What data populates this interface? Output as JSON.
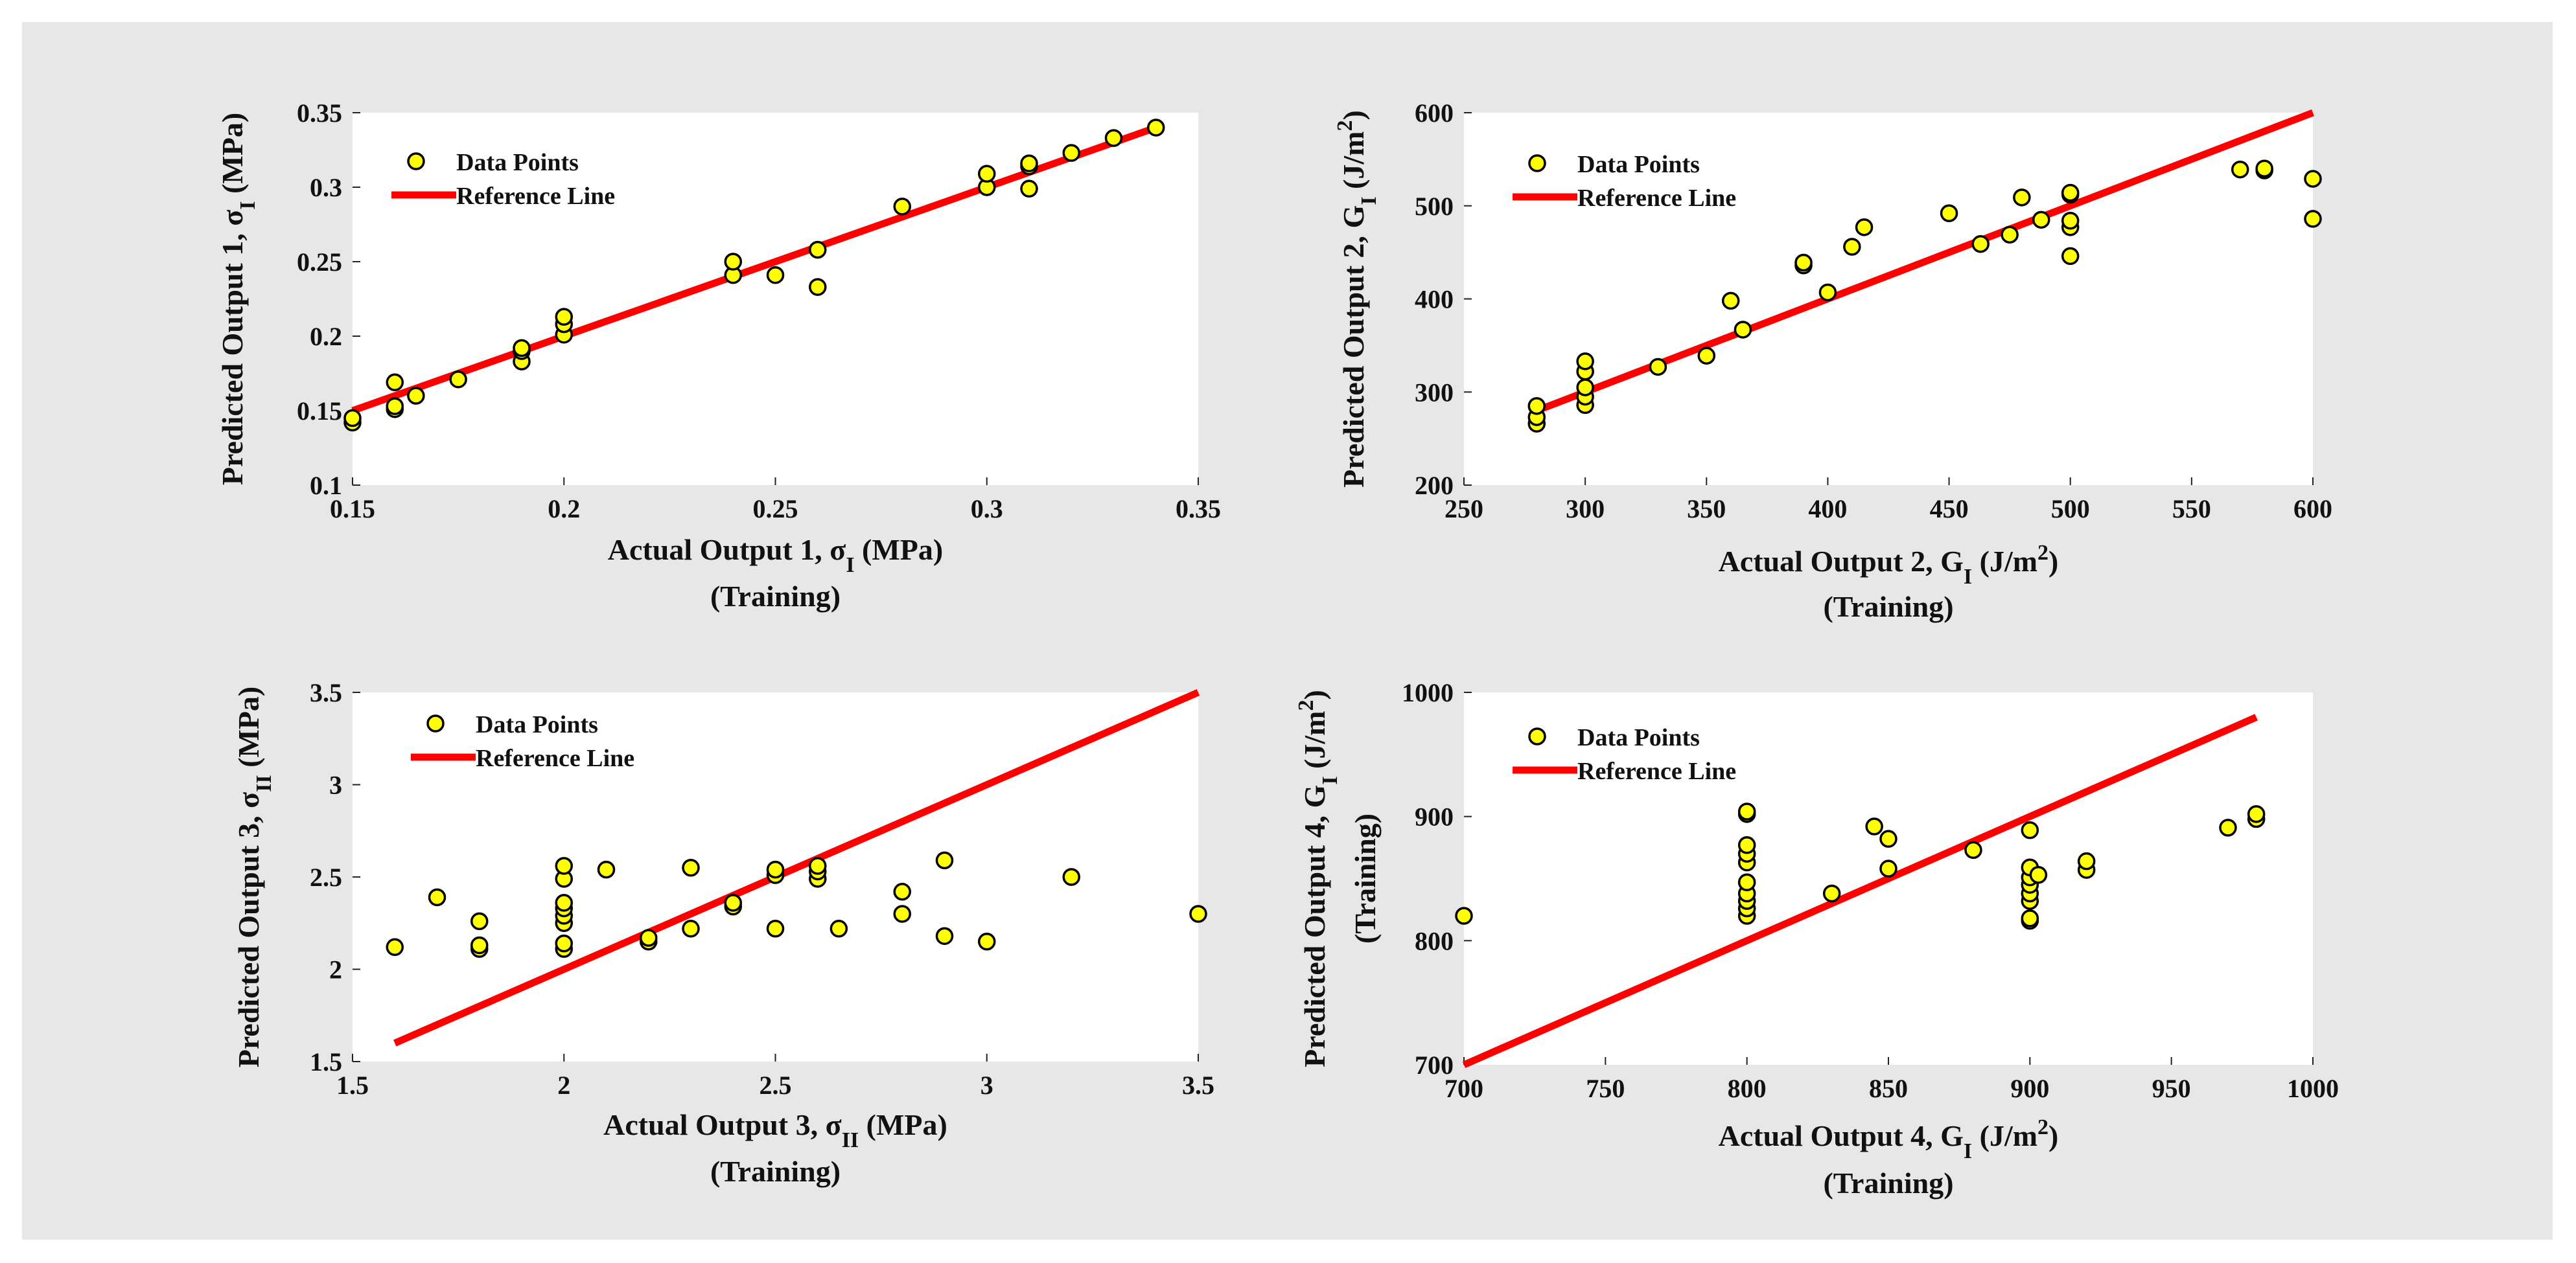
{
  "colors": {
    "background": "#e7e7e7",
    "plot_background": "#ffffff",
    "marker_fill": "#ffff00",
    "marker_edge": "#000000",
    "reference_line": "#ff0000"
  },
  "chart_data": [
    {
      "type": "scatter",
      "id": "output-1",
      "title": "",
      "xlabel": {
        "text": "Actual Output 1, σ",
        "sub": "I",
        "post": " (MPa)"
      },
      "ylabel": {
        "text": "Predicted Output 1, σ",
        "sub": "I",
        "post": " (MPa)"
      },
      "caption": "(Training)",
      "xlim": [
        0.15,
        0.35
      ],
      "ylim": [
        0.1,
        0.35
      ],
      "xticks": [
        0.15,
        0.2,
        0.25,
        0.3,
        0.35
      ],
      "xtick_labels": [
        "0.15",
        "0.2",
        "0.25",
        "0.3",
        "0.35"
      ],
      "yticks": [
        0.1,
        0.15,
        0.2,
        0.25,
        0.3,
        0.35
      ],
      "ytick_labels": [
        "0.1",
        "0.15",
        "0.2",
        "0.25",
        "0.3",
        "0.35"
      ],
      "legend": {
        "position": "top-left",
        "entries": [
          "Data Points",
          "Reference Line"
        ]
      },
      "reference_line": [
        [
          0.15,
          0.15
        ],
        [
          0.34,
          0.34
        ]
      ],
      "series": [
        {
          "name": "Data Points",
          "points": [
            [
              0.15,
              0.142
            ],
            [
              0.15,
              0.145
            ],
            [
              0.16,
              0.151
            ],
            [
              0.16,
              0.153
            ],
            [
              0.16,
              0.169
            ],
            [
              0.165,
              0.16
            ],
            [
              0.175,
              0.171
            ],
            [
              0.19,
              0.183
            ],
            [
              0.19,
              0.19
            ],
            [
              0.19,
              0.192
            ],
            [
              0.2,
              0.201
            ],
            [
              0.2,
              0.208
            ],
            [
              0.2,
              0.213
            ],
            [
              0.24,
              0.241
            ],
            [
              0.24,
              0.25
            ],
            [
              0.25,
              0.241
            ],
            [
              0.26,
              0.233
            ],
            [
              0.26,
              0.258
            ],
            [
              0.28,
              0.287
            ],
            [
              0.3,
              0.3
            ],
            [
              0.3,
              0.309
            ],
            [
              0.31,
              0.299
            ],
            [
              0.31,
              0.314
            ],
            [
              0.31,
              0.316
            ],
            [
              0.32,
              0.323
            ],
            [
              0.33,
              0.333
            ],
            [
              0.34,
              0.34
            ]
          ]
        }
      ]
    },
    {
      "type": "scatter",
      "id": "output-2",
      "title": "",
      "xlabel": {
        "text": "Actual Output 2, G",
        "sub": "I",
        "post": " (J/m",
        "sup": "2",
        "post2": ")"
      },
      "ylabel": {
        "text": "Predicted Output 2, G",
        "sub": "I",
        "post": " (J/m",
        "sup": "2",
        "post2": ")"
      },
      "caption": "(Training)",
      "xlim": [
        250,
        600
      ],
      "ylim": [
        200,
        600
      ],
      "xticks": [
        250,
        300,
        350,
        400,
        450,
        500,
        550,
        600
      ],
      "xtick_labels": [
        "250",
        "300",
        "350",
        "400",
        "450",
        "500",
        "550",
        "600"
      ],
      "yticks": [
        200,
        300,
        400,
        500,
        600
      ],
      "ytick_labels": [
        "200",
        "300",
        "400",
        "500",
        "600"
      ],
      "legend": {
        "position": "top-left",
        "entries": [
          "Data Points",
          "Reference Line"
        ]
      },
      "reference_line": [
        [
          280,
          280
        ],
        [
          600,
          600
        ]
      ],
      "series": [
        {
          "name": "Data Points",
          "points": [
            [
              280,
              266
            ],
            [
              280,
              273
            ],
            [
              280,
              285
            ],
            [
              300,
              286
            ],
            [
              300,
              295
            ],
            [
              300,
              305
            ],
            [
              300,
              322
            ],
            [
              300,
              333
            ],
            [
              330,
              327
            ],
            [
              350,
              339
            ],
            [
              360,
              398
            ],
            [
              365,
              367
            ],
            [
              390,
              436
            ],
            [
              390,
              439
            ],
            [
              400,
              407
            ],
            [
              410,
              456
            ],
            [
              415,
              477
            ],
            [
              450,
              492
            ],
            [
              463,
              459
            ],
            [
              475,
              469
            ],
            [
              480,
              509
            ],
            [
              488,
              485
            ],
            [
              500,
              446
            ],
            [
              500,
              477
            ],
            [
              500,
              484
            ],
            [
              500,
              512
            ],
            [
              500,
              514
            ],
            [
              570,
              539
            ],
            [
              580,
              538
            ],
            [
              580,
              540
            ],
            [
              600,
              486
            ],
            [
              600,
              529
            ]
          ]
        }
      ]
    },
    {
      "type": "scatter",
      "id": "output-3",
      "title": "",
      "xlabel": {
        "text": "Actual Output 3, σ",
        "sub": "II",
        "post": " (MPa)"
      },
      "ylabel": {
        "text": "Predicted Output 3, σ",
        "sub": "II",
        "post": " (MPa)"
      },
      "caption": "(Training)",
      "xlim": [
        1.5,
        3.5
      ],
      "ylim": [
        1.5,
        3.5
      ],
      "xticks": [
        1.5,
        2,
        2.5,
        3,
        3.5
      ],
      "xtick_labels": [
        "1.5",
        "2",
        "2.5",
        "3",
        "3.5"
      ],
      "yticks": [
        1.5,
        2,
        2.5,
        3,
        3.5
      ],
      "ytick_labels": [
        "1.5",
        "2",
        "2.5",
        "3",
        "3.5"
      ],
      "legend": {
        "position": "top-left",
        "entries": [
          "Data Points",
          "Reference Line"
        ]
      },
      "reference_line": [
        [
          1.6,
          1.6
        ],
        [
          3.5,
          3.5
        ]
      ],
      "series": [
        {
          "name": "Data Points",
          "points": [
            [
              1.6,
              2.12
            ],
            [
              1.7,
              2.39
            ],
            [
              1.8,
              2.11
            ],
            [
              1.8,
              2.13
            ],
            [
              1.8,
              2.26
            ],
            [
              2.0,
              2.11
            ],
            [
              2.0,
              2.14
            ],
            [
              2.0,
              2.25
            ],
            [
              2.0,
              2.29
            ],
            [
              2.0,
              2.33
            ],
            [
              2.0,
              2.36
            ],
            [
              2.0,
              2.49
            ],
            [
              2.0,
              2.56
            ],
            [
              2.1,
              2.54
            ],
            [
              2.2,
              2.15
            ],
            [
              2.2,
              2.17
            ],
            [
              2.3,
              2.22
            ],
            [
              2.3,
              2.55
            ],
            [
              2.4,
              2.34
            ],
            [
              2.4,
              2.36
            ],
            [
              2.5,
              2.22
            ],
            [
              2.5,
              2.51
            ],
            [
              2.5,
              2.54
            ],
            [
              2.6,
              2.49
            ],
            [
              2.6,
              2.53
            ],
            [
              2.6,
              2.56
            ],
            [
              2.65,
              2.22
            ],
            [
              2.8,
              2.3
            ],
            [
              2.8,
              2.42
            ],
            [
              2.9,
              2.18
            ],
            [
              2.9,
              2.59
            ],
            [
              3.0,
              2.15
            ],
            [
              3.2,
              2.5
            ],
            [
              3.5,
              2.3
            ]
          ]
        }
      ]
    },
    {
      "type": "scatter",
      "id": "output-4",
      "title": "",
      "xlabel": {
        "text": "Actual Output 4, G",
        "sub": "I",
        "post": " (J/m",
        "sup": "2",
        "post2": ")"
      },
      "ylabel": {
        "text": "Predicted Output 4, G",
        "sub": "I",
        "post": " (J/m",
        "sup": "2",
        "post2": ")"
      },
      "ylabel_line2": "(Training)",
      "caption": "(Training)",
      "xlim": [
        700,
        1000
      ],
      "ylim": [
        700,
        1000
      ],
      "xticks": [
        700,
        750,
        800,
        850,
        900,
        950,
        1000
      ],
      "xtick_labels": [
        "700",
        "750",
        "800",
        "850",
        "900",
        "950",
        "1000"
      ],
      "yticks": [
        700,
        800,
        900,
        1000
      ],
      "ytick_labels": [
        "700",
        "800",
        "900",
        "1000"
      ],
      "legend": {
        "position": "top-left",
        "entries": [
          "Data Points",
          "Reference Line"
        ]
      },
      "reference_line": [
        [
          700,
          700
        ],
        [
          980,
          980
        ]
      ],
      "series": [
        {
          "name": "Data Points",
          "points": [
            [
              700,
              820
            ],
            [
              800,
              820
            ],
            [
              800,
              826
            ],
            [
              800,
              832
            ],
            [
              800,
              838
            ],
            [
              800,
              847
            ],
            [
              800,
              863
            ],
            [
              800,
              870
            ],
            [
              800,
              877
            ],
            [
              800,
              902
            ],
            [
              800,
              904
            ],
            [
              830,
              838
            ],
            [
              845,
              892
            ],
            [
              850,
              858
            ],
            [
              850,
              882
            ],
            [
              880,
              873
            ],
            [
              900,
              816
            ],
            [
              900,
              818
            ],
            [
              900,
              832
            ],
            [
              900,
              838
            ],
            [
              900,
              845
            ],
            [
              900,
              851
            ],
            [
              900,
              859
            ],
            [
              900,
              889
            ],
            [
              903,
              853
            ],
            [
              920,
              857
            ],
            [
              920,
              864
            ],
            [
              970,
              891
            ],
            [
              980,
              898
            ],
            [
              980,
              902
            ]
          ]
        }
      ]
    }
  ]
}
